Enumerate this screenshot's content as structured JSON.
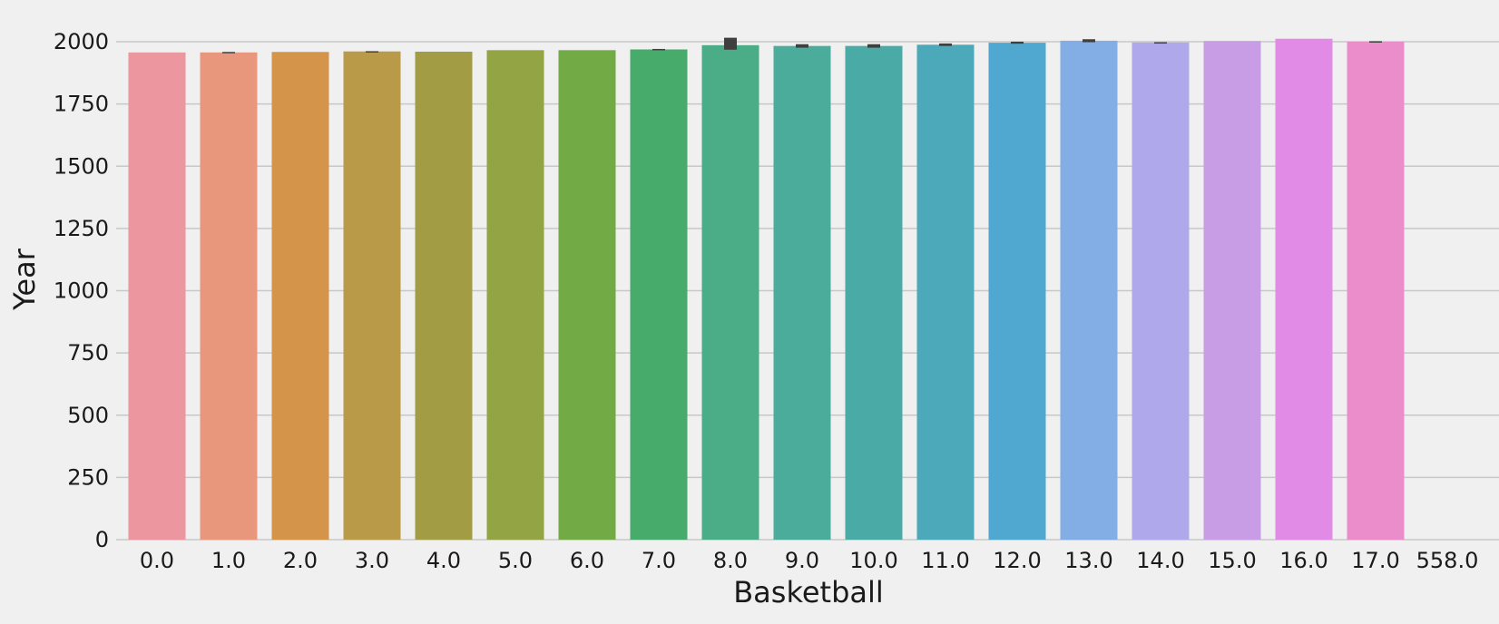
{
  "chart_data": {
    "type": "bar",
    "title": "",
    "xlabel": "Basketball",
    "ylabel": "Year",
    "ylim": [
      0,
      2100
    ],
    "yticks": [
      0,
      250,
      500,
      750,
      1000,
      1250,
      1500,
      1750,
      2000
    ],
    "grid": "horizontal",
    "legend": "none",
    "categories": [
      "0.0",
      "1.0",
      "2.0",
      "3.0",
      "4.0",
      "5.0",
      "6.0",
      "7.0",
      "8.0",
      "9.0",
      "10.0",
      "11.0",
      "12.0",
      "13.0",
      "14.0",
      "15.0",
      "16.0",
      "17.0",
      "558.0"
    ],
    "values": [
      1957,
      1957,
      1959,
      1961,
      1960,
      1966,
      1966,
      1969,
      1986,
      1983,
      1983,
      1988,
      1996,
      2004,
      1997,
      2003,
      2012,
      2000,
      null
    ],
    "error_low": [
      null,
      1955,
      null,
      1960,
      null,
      null,
      null,
      1967,
      1968,
      1976,
      1976,
      1983,
      1992,
      1998,
      1996,
      null,
      null,
      1998,
      null
    ],
    "error_high": [
      null,
      1959,
      null,
      1962,
      null,
      null,
      null,
      1971,
      2016,
      1990,
      1990,
      1993,
      2000,
      2010,
      1998,
      null,
      null,
      2002,
      null
    ],
    "colors": [
      "#ec969f",
      "#e8967c",
      "#d4954b",
      "#b89a48",
      "#a29d45",
      "#93a444",
      "#72aa46",
      "#47ac6b",
      "#4aad87",
      "#4bac9c",
      "#4aaaa6",
      "#4ca9b9",
      "#50a8d0",
      "#83ade5",
      "#afa8ea",
      "#c99de6",
      "#e18be6",
      "#ea8dca",
      "#e993b5"
    ],
    "error_color": "#3f3f3f",
    "grid_color": "#c8c8c8"
  }
}
